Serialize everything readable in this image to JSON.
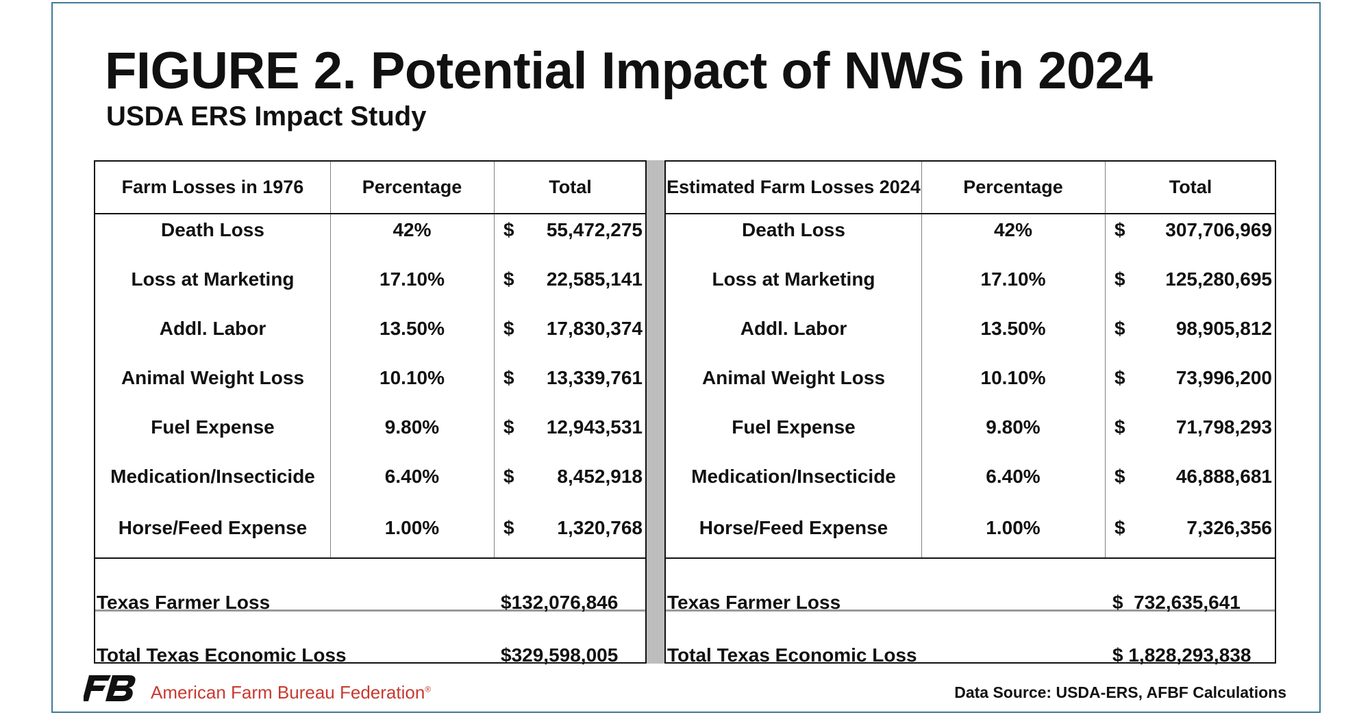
{
  "title": "FIGURE 2. Potential Impact of NWS in 2024",
  "subtitle": "USDA ERS Impact Study",
  "left_table": {
    "headers": [
      "Farm Losses in 1976",
      "Percentage",
      "Total"
    ],
    "rows": [
      {
        "label": "Death Loss",
        "pct": "42%",
        "sym": "$",
        "amt": "55,472,275"
      },
      {
        "label": "Loss at Marketing",
        "pct": "17.10%",
        "sym": "$",
        "amt": "22,585,141"
      },
      {
        "label": "Addl. Labor",
        "pct": "13.50%",
        "sym": "$",
        "amt": "17,830,374"
      },
      {
        "label": "Animal Weight Loss",
        "pct": "10.10%",
        "sym": "$",
        "amt": "13,339,761"
      },
      {
        "label": "Fuel Expense",
        "pct": "9.80%",
        "sym": "$",
        "amt": "12,943,531"
      },
      {
        "label": "Medication/Insecticide",
        "pct": "6.40%",
        "sym": "$",
        "amt": "8,452,918"
      },
      {
        "label": "Horse/Feed Expense",
        "pct": "1.00%",
        "sym": "$",
        "amt": "1,320,768"
      }
    ],
    "farmer_loss_label": "Texas Farmer Loss",
    "farmer_loss_value": "$132,076,846",
    "economic_loss_label": "Total Texas Economic Loss",
    "economic_loss_value": "$329,598,005"
  },
  "right_table": {
    "headers": [
      "Estimated Farm Losses 2024",
      "Percentage",
      "Total"
    ],
    "rows": [
      {
        "label": "Death Loss",
        "pct": "42%",
        "sym": "$",
        "amt": "307,706,969"
      },
      {
        "label": "Loss at Marketing",
        "pct": "17.10%",
        "sym": "$",
        "amt": "125,280,695"
      },
      {
        "label": "Addl. Labor",
        "pct": "13.50%",
        "sym": "$",
        "amt": "98,905,812"
      },
      {
        "label": "Animal Weight Loss",
        "pct": "10.10%",
        "sym": "$",
        "amt": "73,996,200"
      },
      {
        "label": "Fuel Expense",
        "pct": "9.80%",
        "sym": "$",
        "amt": "71,798,293"
      },
      {
        "label": "Medication/Insecticide",
        "pct": "6.40%",
        "sym": "$",
        "amt": "46,888,681"
      },
      {
        "label": "Horse/Feed Expense",
        "pct": "1.00%",
        "sym": "$",
        "amt": "7,326,356"
      }
    ],
    "farmer_loss_label": "Texas Farmer Loss",
    "farmer_loss_value": "$  732,635,641",
    "economic_loss_label": "Total Texas Economic Loss",
    "economic_loss_value": "$ 1,828,293,838"
  },
  "footer": {
    "organization": "American Farm Bureau Federation",
    "trademark": "®",
    "source": "Data Source:  USDA-ERS, AFBF Calculations",
    "logo_icon": "fb-logo-icon",
    "org_color": "#c8392f"
  }
}
